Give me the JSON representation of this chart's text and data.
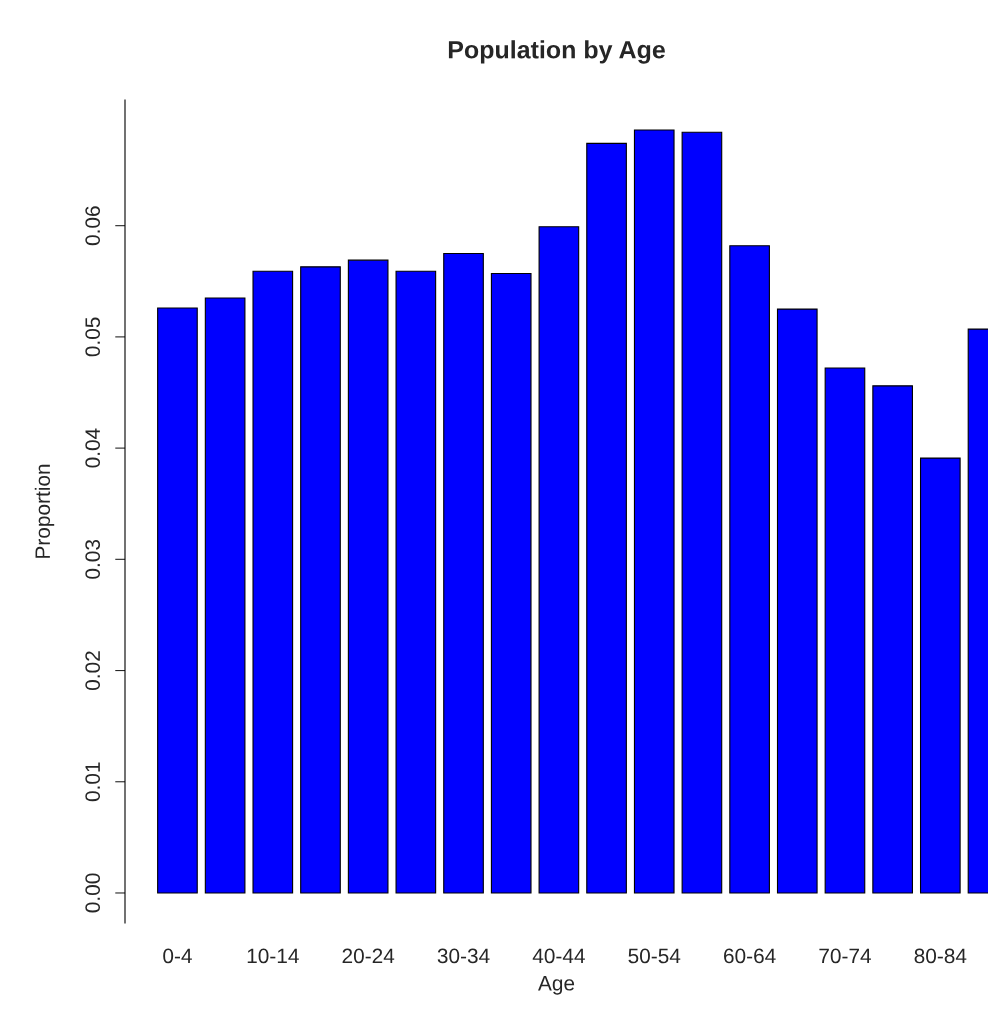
{
  "chart_data": {
    "type": "bar",
    "title": "Population by Age",
    "xlabel": "Age",
    "ylabel": "Proportion",
    "categories": [
      "0-4",
      null,
      "10-14",
      null,
      "20-24",
      null,
      "30-34",
      null,
      "40-44",
      null,
      "50-54",
      null,
      "60-64",
      null,
      "70-74",
      null,
      "80-84",
      null
    ],
    "values": [
      0.0526,
      0.0535,
      0.0559,
      0.0563,
      0.0569,
      0.0559,
      0.0575,
      0.0557,
      0.0599,
      0.0674,
      0.0686,
      0.0684,
      0.0582,
      0.0525,
      0.0472,
      0.0456,
      0.0391,
      0.0507
    ],
    "color": "#0000ff",
    "ylim": [
      -0.0027,
      0.0713
    ],
    "yticks": [
      {
        "value": 0,
        "label": "0.00"
      },
      {
        "value": 0.01,
        "label": "0.01"
      },
      {
        "value": 0.02,
        "label": "0.02"
      },
      {
        "value": 0.03,
        "label": "0.03"
      },
      {
        "value": 0.04,
        "label": "0.04"
      },
      {
        "value": 0.05,
        "label": "0.05"
      },
      {
        "value": 0.06,
        "label": "0.06"
      }
    ],
    "grid": false
  }
}
